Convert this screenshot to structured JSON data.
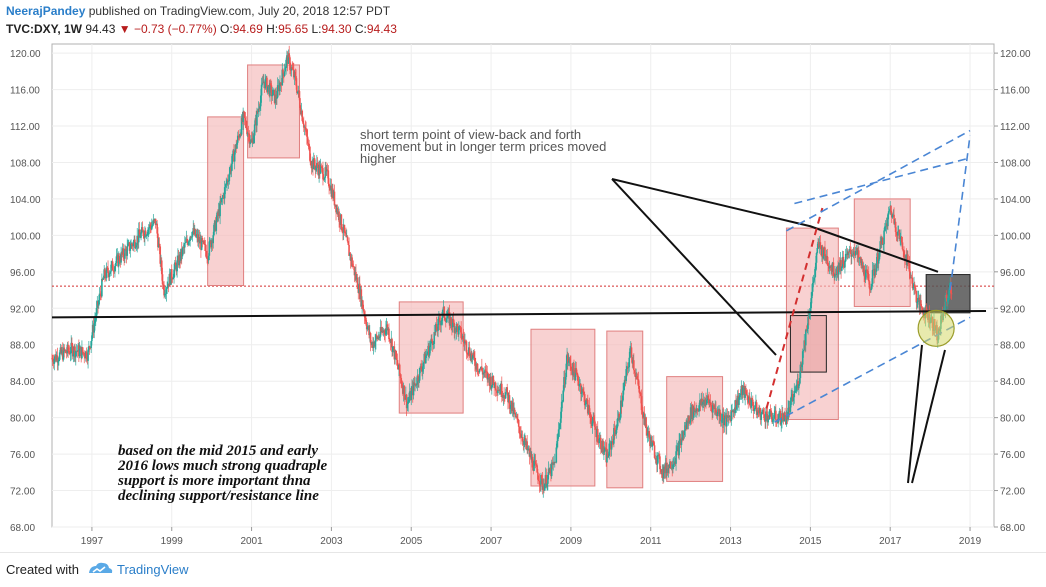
{
  "header": {
    "author": "NeerajPandey",
    "published": "published on TradingView.com, July 20, 2018 12:57 PDT",
    "symbol": "TVC:DXY, 1W",
    "last": "94.43",
    "change": "−0.73 (−0.77%)",
    "o_label": "O:",
    "o_val": "94.69",
    "h_label": "H:",
    "h_val": "95.65",
    "l_label": "L:",
    "l_val": "94.30",
    "c_label": "C:",
    "c_val": "94.43"
  },
  "footer": {
    "created": "Created with",
    "brand": "TradingView"
  },
  "colors": {
    "up": "#26a69a",
    "down": "#ef5350",
    "box": "#f4b8b8",
    "boxStroke": "#e07f7f",
    "dashed": "#4a86d4",
    "priceLine": "#d32f2f"
  },
  "chart_data": {
    "type": "candlestick",
    "ylim": [
      68,
      121
    ],
    "xlim": [
      1996.0,
      2019.6
    ],
    "y_ticks": [
      "68.00",
      "72.00",
      "76.00",
      "80.00",
      "84.00",
      "88.00",
      "92.00",
      "96.00",
      "100.00",
      "104.00",
      "108.00",
      "112.00",
      "116.00",
      "120.00"
    ],
    "x_ticks": [
      "1997",
      "1999",
      "2001",
      "2003",
      "2005",
      "2007",
      "2009",
      "2011",
      "2013",
      "2015",
      "2017",
      "2019"
    ],
    "current_price": 94.43,
    "series_path": [
      [
        1996.0,
        86.5
      ],
      [
        1996.5,
        87.5
      ],
      [
        1996.9,
        87.0
      ],
      [
        1997.3,
        95.5
      ],
      [
        1997.8,
        98.0
      ],
      [
        1998.2,
        100.0
      ],
      [
        1998.6,
        101.5
      ],
      [
        1998.8,
        94.0
      ],
      [
        1999.1,
        96.5
      ],
      [
        1999.5,
        100.5
      ],
      [
        1999.9,
        98.0
      ],
      [
        2000.3,
        104.5
      ],
      [
        2000.8,
        113.0
      ],
      [
        2001.0,
        110.0
      ],
      [
        2001.3,
        117.0
      ],
      [
        2001.6,
        115.0
      ],
      [
        2001.9,
        119.5
      ],
      [
        2002.1,
        117.0
      ],
      [
        2002.5,
        108.0
      ],
      [
        2002.9,
        106.5
      ],
      [
        2003.3,
        100.5
      ],
      [
        2003.7,
        94.0
      ],
      [
        2004.0,
        88.0
      ],
      [
        2004.4,
        90.0
      ],
      [
        2004.9,
        81.5
      ],
      [
        2005.3,
        86.0
      ],
      [
        2005.8,
        91.5
      ],
      [
        2006.2,
        89.5
      ],
      [
        2006.6,
        86.0
      ],
      [
        2007.0,
        84.0
      ],
      [
        2007.4,
        82.5
      ],
      [
        2007.9,
        76.5
      ],
      [
        2008.3,
        72.5
      ],
      [
        2008.6,
        75.0
      ],
      [
        2008.9,
        86.5
      ],
      [
        2009.2,
        84.0
      ],
      [
        2009.5,
        80.0
      ],
      [
        2009.9,
        75.5
      ],
      [
        2010.2,
        80.0
      ],
      [
        2010.5,
        87.5
      ],
      [
        2010.9,
        78.5
      ],
      [
        2011.3,
        74.0
      ],
      [
        2011.6,
        75.5
      ],
      [
        2012.0,
        80.5
      ],
      [
        2012.4,
        82.0
      ],
      [
        2012.9,
        79.5
      ],
      [
        2013.3,
        83.0
      ],
      [
        2013.7,
        80.5
      ],
      [
        2014.1,
        80.0
      ],
      [
        2014.4,
        80.0
      ],
      [
        2014.7,
        84.0
      ],
      [
        2015.0,
        92.5
      ],
      [
        2015.2,
        99.0
      ],
      [
        2015.6,
        96.0
      ],
      [
        2016.1,
        98.5
      ],
      [
        2016.5,
        94.5
      ],
      [
        2016.9,
        101.0
      ],
      [
        2017.0,
        103.0
      ],
      [
        2017.4,
        97.5
      ],
      [
        2017.7,
        92.5
      ],
      [
        2018.0,
        91.0
      ],
      [
        2018.2,
        89.0
      ],
      [
        2018.4,
        93.0
      ],
      [
        2018.55,
        94.43
      ]
    ],
    "boxes": [
      [
        1999.9,
        2000.8,
        94.5,
        113.0
      ],
      [
        2000.9,
        2002.2,
        108.5,
        118.7
      ],
      [
        2004.7,
        2006.3,
        80.5,
        92.7
      ],
      [
        2008.0,
        2009.6,
        72.5,
        89.7
      ],
      [
        2009.9,
        2010.8,
        72.3,
        89.5
      ],
      [
        2011.4,
        2012.8,
        73.0,
        84.5
      ],
      [
        2014.4,
        2015.7,
        79.8,
        100.8
      ],
      [
        2016.1,
        2017.5,
        92.2,
        104.0
      ],
      [
        2014.5,
        2015.4,
        85.0,
        91.2
      ],
      [
        2017.9,
        2019.0,
        91.5,
        95.7
      ]
    ],
    "trend_lines": [
      [
        1996.0,
        91.0,
        2019.4,
        91.7
      ],
      [
        2015.0,
        101.0,
        2018.5,
        96.0
      ],
      [
        2013.9,
        81.0,
        2018.8,
        95.0
      ],
      [
        2014.4,
        100.5,
        2019.0,
        111.5
      ],
      [
        2014.1,
        79.5,
        2019.0,
        91.0
      ]
    ],
    "annotation_top": [
      "short term point of view-back and forth",
      "movement but in longer term prices moved",
      "higher"
    ],
    "annotation_bottom": [
      "based on the mid 2015  and early",
      "2016 lows much strong quadraple",
      "support is more important thna",
      "declining support/resistance line"
    ]
  }
}
